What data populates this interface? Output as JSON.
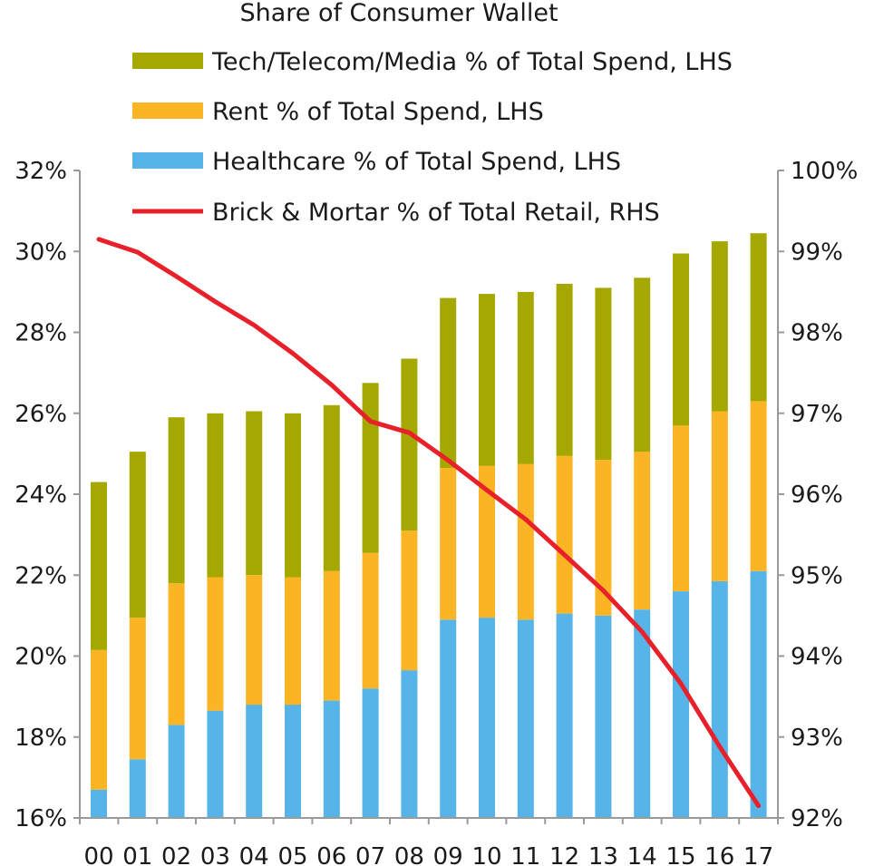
{
  "chart_data": {
    "type": "bar",
    "title": "Share of Consumer Wallet",
    "categories": [
      "00",
      "01",
      "02",
      "03",
      "04",
      "05",
      "06",
      "07",
      "08",
      "09",
      "10",
      "11",
      "12",
      "13",
      "14",
      "15",
      "16",
      "17"
    ],
    "series": [
      {
        "name": "Healthcare % of Total Spend, LHS",
        "kind": "stacked-bar",
        "axis": "left",
        "color": "#56b4e9",
        "values": [
          0.7,
          1.45,
          2.3,
          2.65,
          2.8,
          2.8,
          2.9,
          3.2,
          3.65,
          4.9,
          4.95,
          4.9,
          5.05,
          5.0,
          5.15,
          5.6,
          5.85,
          6.1
        ]
      },
      {
        "name": "Rent % of Total Spend, LHS",
        "kind": "stacked-bar",
        "axis": "left",
        "color": "#fbb524",
        "values": [
          3.45,
          3.5,
          3.5,
          3.3,
          3.2,
          3.15,
          3.2,
          3.35,
          3.45,
          3.75,
          3.75,
          3.85,
          3.9,
          3.85,
          3.9,
          4.1,
          4.2,
          4.2
        ]
      },
      {
        "name": "Tech/Telecom/Media % of Total Spend, LHS",
        "kind": "stacked-bar",
        "axis": "left",
        "color": "#a4a800",
        "values": [
          4.15,
          4.1,
          4.1,
          4.05,
          4.05,
          4.05,
          4.1,
          4.2,
          4.25,
          4.2,
          4.25,
          4.25,
          4.25,
          4.25,
          4.3,
          4.25,
          4.2,
          4.15
        ]
      },
      {
        "name": "Brick & Mortar % of Total Retail, RHS",
        "kind": "line",
        "axis": "right",
        "color": "#e8202a",
        "values": [
          99.15,
          98.99,
          98.69,
          98.38,
          98.09,
          97.74,
          97.35,
          96.9,
          96.76,
          96.42,
          96.05,
          95.69,
          95.25,
          94.81,
          94.3,
          93.66,
          92.88,
          92.15
        ]
      }
    ],
    "legend_order": [
      "Tech/Telecom/Media % of Total Spend, LHS",
      "Rent % of Total Spend, LHS",
      "Healthcare % of Total Spend, LHS",
      "Brick & Mortar % of Total Retail, RHS"
    ],
    "legend_position": "top-center",
    "y_left": {
      "min": 16,
      "max": 32,
      "step": 2,
      "tick_labels": [
        "16%",
        "18%",
        "20%",
        "22%",
        "24%",
        "26%",
        "28%",
        "30%",
        "32%"
      ]
    },
    "y_right": {
      "min": 92,
      "max": 100,
      "step": 1,
      "tick_labels": [
        "92%",
        "93%",
        "94%",
        "95%",
        "96%",
        "97%",
        "98%",
        "99%",
        "100%"
      ]
    },
    "xlabel": "",
    "ylabel": "",
    "grid": false
  }
}
